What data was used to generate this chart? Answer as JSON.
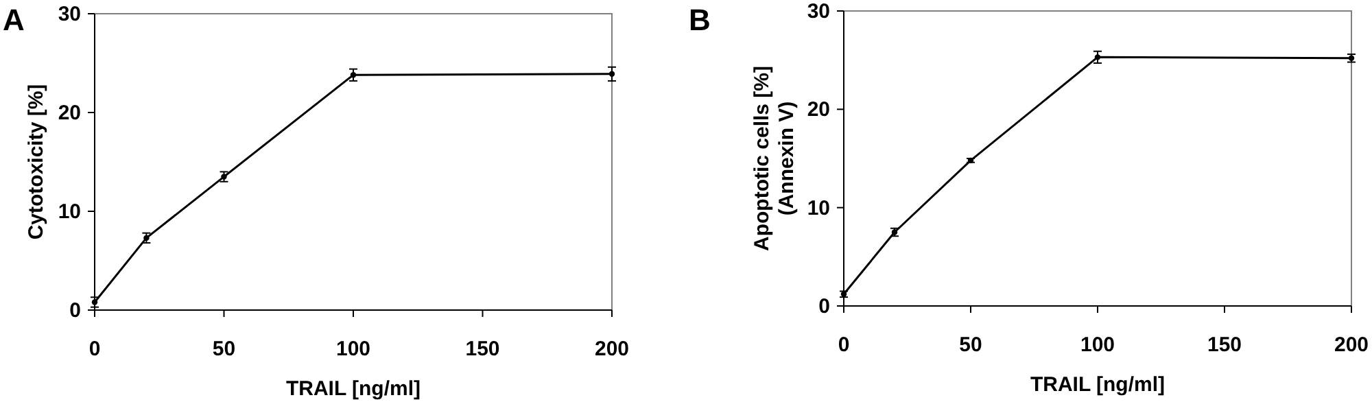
{
  "chart_data": [
    {
      "type": "line",
      "title": "A",
      "xlabel": "TRAIL [ng/ml]",
      "ylabel": "Cytotoxicity [%]",
      "x": [
        0,
        20,
        50,
        100,
        200
      ],
      "xlim": [
        0,
        200
      ],
      "xticks": [
        0,
        50,
        100,
        150,
        200
      ],
      "ylim": [
        0,
        30
      ],
      "yticks": [
        0,
        10,
        20,
        30
      ],
      "grid": false,
      "marker": "circle",
      "line_style": "solid",
      "series": [
        {
          "color": "#000000",
          "values": [
            0.8,
            7.3,
            13.5,
            23.8,
            23.9
          ],
          "errors": [
            0.5,
            0.5,
            0.5,
            0.6,
            0.7
          ]
        }
      ]
    },
    {
      "type": "line",
      "title": "B",
      "xlabel": "TRAIL [ng/ml]",
      "ylabel": "Apoptotic cells [%]\n(Annexin V)",
      "x": [
        0,
        20,
        50,
        100,
        200
      ],
      "xlim": [
        0,
        200
      ],
      "xticks": [
        0,
        50,
        100,
        150,
        200
      ],
      "ylim": [
        0,
        30
      ],
      "yticks": [
        0,
        10,
        20,
        30
      ],
      "grid": false,
      "marker": "circle",
      "line_style": "solid",
      "series": [
        {
          "color": "#000000",
          "values": [
            1.2,
            7.5,
            14.8,
            25.3,
            25.2
          ],
          "errors": [
            0.3,
            0.4,
            0.2,
            0.6,
            0.4
          ]
        }
      ]
    }
  ]
}
